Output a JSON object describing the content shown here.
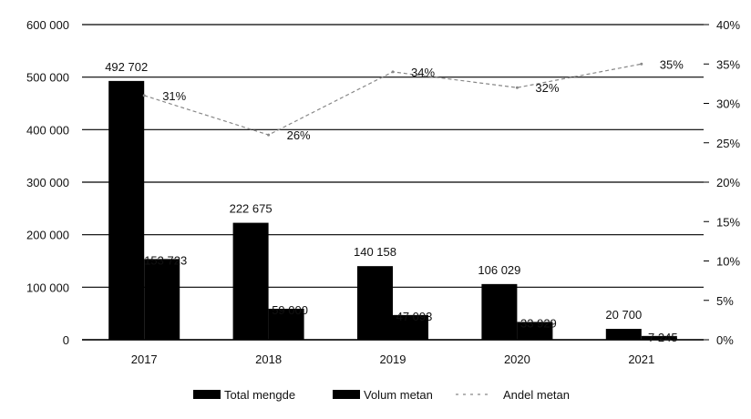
{
  "chart_data": {
    "type": "bar",
    "categories": [
      "2017",
      "2018",
      "2019",
      "2020",
      "2021"
    ],
    "series": [
      {
        "name": "Total mengde",
        "kind": "bar",
        "axis": "left",
        "values": [
          492702,
          222675,
          140158,
          106029,
          20700
        ],
        "labels": [
          "492 702",
          "222 675",
          "140 158",
          "106 029",
          "20 700"
        ],
        "color": "#000000"
      },
      {
        "name": "Volum metan",
        "kind": "bar",
        "axis": "left",
        "values": [
          153723,
          59000,
          47093,
          33929,
          7245
        ],
        "labels": [
          "153 723",
          "59 000",
          "47 093",
          "33 929",
          "7 245"
        ],
        "color": "#000000"
      },
      {
        "name": "Andel metan",
        "kind": "line",
        "axis": "right",
        "values": [
          31,
          26,
          34,
          32,
          35
        ],
        "labels": [
          "31%",
          "26%",
          "34%",
          "32%",
          "35%"
        ],
        "color": "#888888"
      }
    ],
    "y_left": {
      "ylim": [
        0,
        600000
      ],
      "ticks": [
        0,
        100000,
        200000,
        300000,
        400000,
        500000,
        600000
      ],
      "tick_labels": [
        "0",
        "100 000",
        "200 000",
        "300 000",
        "400 000",
        "500 000",
        "600 000"
      ]
    },
    "y_right": {
      "ylim": [
        0,
        40
      ],
      "ticks": [
        0,
        5,
        10,
        15,
        20,
        25,
        30,
        35,
        40
      ],
      "tick_labels": [
        "0%",
        "5%",
        "10%",
        "15%",
        "20%",
        "25%",
        "30%",
        "35%",
        "40%"
      ]
    },
    "grid": true,
    "legend_position": "bottom",
    "title": "",
    "xlabel": "",
    "ylabel": ""
  }
}
